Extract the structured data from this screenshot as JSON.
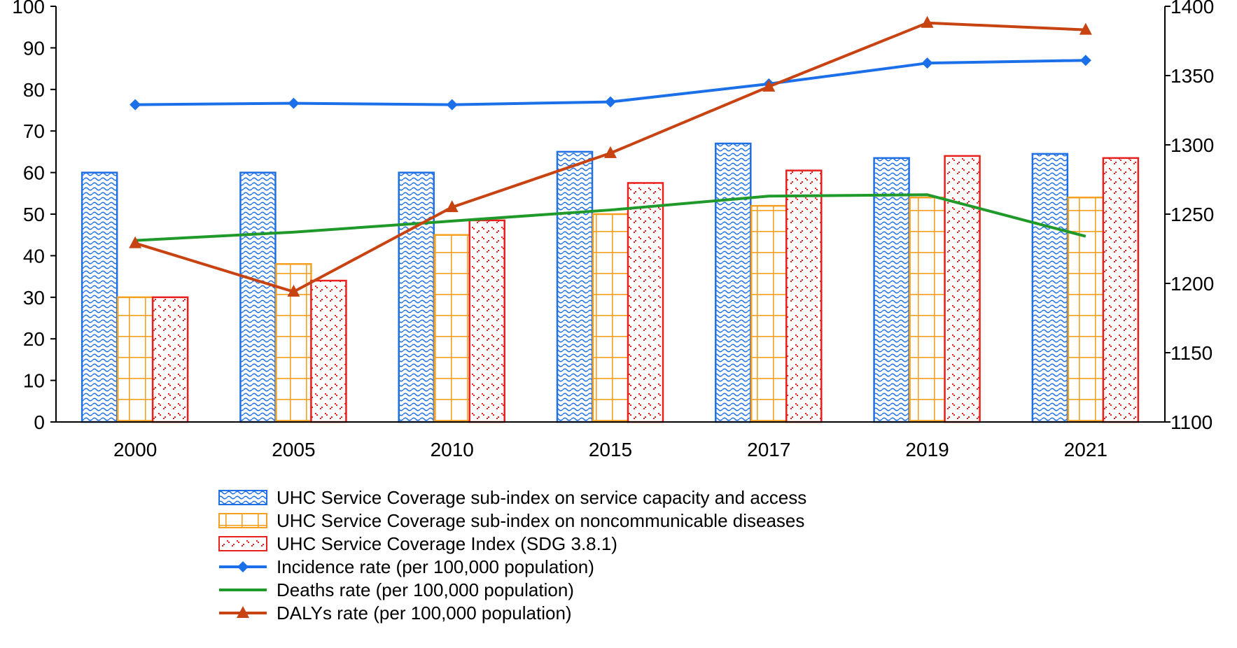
{
  "chart_data": {
    "type": "bar+line",
    "categories": [
      "2000",
      "2005",
      "2010",
      "2015",
      "2017",
      "2019",
      "2021"
    ],
    "left_axis": {
      "range": [
        0,
        100
      ],
      "ticks": [
        "0",
        "10",
        "20",
        "30",
        "40",
        "50",
        "60",
        "70",
        "80",
        "90",
        "100"
      ]
    },
    "right_axis": {
      "range": [
        1100,
        1400
      ],
      "ticks": [
        "1100",
        "1150",
        "1200",
        "1250",
        "1300",
        "1350",
        "1400"
      ]
    },
    "bar_series": [
      {
        "name": "UHC Service Coverage sub-index on service capacity and access",
        "color": "#1f6fe5",
        "pattern": "wave",
        "axis": "left",
        "values": [
          60,
          60,
          60,
          65,
          67,
          63.5,
          64.5
        ]
      },
      {
        "name": "UHC Service Coverage sub-index on noncommunicable diseases",
        "color": "#f4a020",
        "pattern": "grid",
        "axis": "left",
        "values": [
          30,
          38,
          45,
          50,
          52,
          54,
          54
        ]
      },
      {
        "name": "UHC Service Coverage Index (SDG 3.8.1)",
        "color": "#e8201e",
        "pattern": "dots",
        "axis": "left",
        "values": [
          30,
          34,
          48.5,
          57.5,
          60.5,
          64,
          63.5
        ]
      }
    ],
    "line_series": [
      {
        "name": "Incidence rate (per 100,000 population)",
        "color": "#1b6fe8",
        "marker": "diamond",
        "axis": "right",
        "values": [
          1329,
          1330,
          1329,
          1331,
          1344,
          1359,
          1361
        ]
      },
      {
        "name": "Deaths rate (per 100,000 population)",
        "color": "#1f9a2a",
        "marker": "none",
        "axis": "right",
        "values": [
          1231,
          1237,
          1245,
          1253,
          1263,
          1264,
          1234
        ]
      },
      {
        "name": "DALYs rate (per 100,000 population)",
        "color": "#c84312",
        "marker": "triangle",
        "axis": "right",
        "values": [
          1229,
          1194,
          1255,
          1294,
          1342,
          1388,
          1383
        ]
      }
    ],
    "xlabel": "",
    "ylabel": "",
    "legend_position": "bottom"
  }
}
